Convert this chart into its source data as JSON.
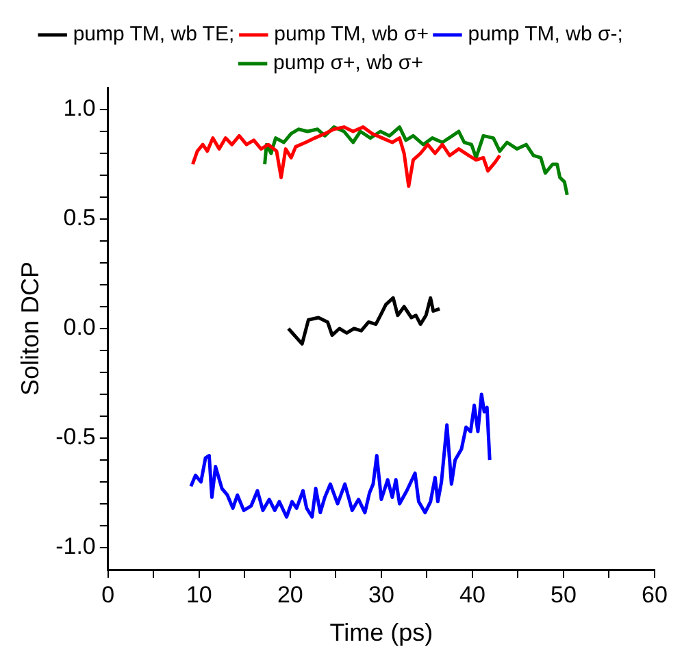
{
  "chart_data": {
    "type": "line",
    "xlabel": "Time (ps)",
    "ylabel": "Soliton DCP",
    "xlim": [
      0,
      60
    ],
    "ylim": [
      -1.1,
      1.1
    ],
    "xticks": [
      0,
      {
        "value": 5,
        "label": null
      },
      10,
      {
        "value": 15,
        "label": null
      },
      20,
      {
        "value": 25,
        "label": null
      },
      30,
      {
        "value": 35,
        "label": null
      },
      40,
      {
        "value": 45,
        "label": null
      },
      50,
      {
        "value": 55,
        "label": null
      },
      60
    ],
    "yticks": [
      {
        "value": -1,
        "label": "-1.0"
      },
      {
        "value": -0.9,
        "label": null
      },
      {
        "value": -0.8,
        "label": null
      },
      {
        "value": -0.7,
        "label": null
      },
      {
        "value": -0.6,
        "label": null
      },
      {
        "value": -0.5,
        "label": "-0.5"
      },
      {
        "value": -0.4,
        "label": null
      },
      {
        "value": -0.3,
        "label": null
      },
      {
        "value": -0.2,
        "label": null
      },
      {
        "value": -0.1,
        "label": null
      },
      {
        "value": 0,
        "label": "0.0"
      },
      {
        "value": 0.1,
        "label": null
      },
      {
        "value": 0.2,
        "label": null
      },
      {
        "value": 0.3,
        "label": null
      },
      {
        "value": 0.4,
        "label": null
      },
      {
        "value": 0.5,
        "label": "0.5"
      },
      {
        "value": 0.6,
        "label": null
      },
      {
        "value": 0.7,
        "label": null
      },
      {
        "value": 0.8,
        "label": null
      },
      {
        "value": 0.9,
        "label": null
      },
      {
        "value": 1,
        "label": "1.0"
      }
    ],
    "grid": false,
    "legend": "top",
    "marker": "none",
    "line_style": "solid",
    "series": [
      {
        "name": "pump TM, wb TE;",
        "color": "#000000",
        "x": [
          19.8,
          21.3,
          22.0,
          23.1,
          24.1,
          24.6,
          25.4,
          26.2,
          27.0,
          27.8,
          28.6,
          29.4,
          29.9,
          30.5,
          31.3,
          31.8,
          32.5,
          33.3,
          33.8,
          34.3,
          34.9,
          35.4,
          35.7,
          36.4
        ],
        "values": [
          0.0,
          -0.07,
          0.04,
          0.05,
          0.03,
          -0.03,
          0.0,
          -0.02,
          0.0,
          -0.01,
          0.03,
          0.02,
          0.06,
          0.11,
          0.14,
          0.06,
          0.1,
          0.05,
          0.06,
          0.02,
          0.06,
          0.14,
          0.08,
          0.09
        ]
      },
      {
        "name": "pump TM, wb σ+",
        "color": "#ff0000",
        "x": [
          9.3,
          9.8,
          10.4,
          10.9,
          11.5,
          12.2,
          12.9,
          13.6,
          14.4,
          15.2,
          16.0,
          16.8,
          17.6,
          18.5,
          19.0,
          19.5,
          20.1,
          20.6,
          21.7,
          22.7,
          23.8,
          24.8,
          25.9,
          26.9,
          28.0,
          29.0,
          30.1,
          31.2,
          32.0,
          32.5,
          33.0,
          33.5,
          34.3,
          35.1,
          35.9,
          36.7,
          37.5,
          38.5,
          39.6,
          40.4,
          41.2,
          41.7,
          42.5,
          43.0
        ],
        "values": [
          0.75,
          0.81,
          0.84,
          0.81,
          0.87,
          0.82,
          0.87,
          0.84,
          0.88,
          0.84,
          0.86,
          0.82,
          0.84,
          0.81,
          0.69,
          0.82,
          0.78,
          0.83,
          0.85,
          0.87,
          0.89,
          0.91,
          0.92,
          0.9,
          0.92,
          0.89,
          0.87,
          0.85,
          0.87,
          0.8,
          0.65,
          0.77,
          0.8,
          0.84,
          0.8,
          0.84,
          0.79,
          0.82,
          0.79,
          0.77,
          0.78,
          0.72,
          0.76,
          0.79
        ]
      },
      {
        "name": "pump TM, wb σ-;",
        "color": "#0000ff",
        "x": [
          9.1,
          9.6,
          10.2,
          10.7,
          11.1,
          11.4,
          11.8,
          12.5,
          13.1,
          13.7,
          14.2,
          14.9,
          15.7,
          16.4,
          17.0,
          17.7,
          18.3,
          18.8,
          19.6,
          20.2,
          20.7,
          21.4,
          21.8,
          22.4,
          22.8,
          23.3,
          23.8,
          24.4,
          25.2,
          26.0,
          26.8,
          27.5,
          28.2,
          28.7,
          29.1,
          29.5,
          30.0,
          30.7,
          31.2,
          31.6,
          32.0,
          32.8,
          33.7,
          34.1,
          34.8,
          35.4,
          35.9,
          36.2,
          36.6,
          37.2,
          37.7,
          38.1,
          38.8,
          39.3,
          39.8,
          40.2,
          40.6,
          41.0,
          41.3,
          41.6,
          41.9
        ],
        "values": [
          -0.72,
          -0.67,
          -0.7,
          -0.59,
          -0.58,
          -0.77,
          -0.63,
          -0.73,
          -0.76,
          -0.82,
          -0.76,
          -0.83,
          -0.81,
          -0.74,
          -0.83,
          -0.78,
          -0.83,
          -0.79,
          -0.86,
          -0.79,
          -0.82,
          -0.74,
          -0.82,
          -0.86,
          -0.73,
          -0.84,
          -0.77,
          -0.71,
          -0.8,
          -0.71,
          -0.83,
          -0.78,
          -0.84,
          -0.75,
          -0.71,
          -0.58,
          -0.78,
          -0.69,
          -0.77,
          -0.69,
          -0.8,
          -0.74,
          -0.66,
          -0.79,
          -0.84,
          -0.79,
          -0.68,
          -0.79,
          -0.7,
          -0.44,
          -0.71,
          -0.6,
          -0.55,
          -0.45,
          -0.47,
          -0.35,
          -0.47,
          -0.3,
          -0.38,
          -0.36,
          -0.6
        ]
      },
      {
        "name": "pump σ+, wb σ+",
        "color": "#008000",
        "x": [
          17.2,
          17.4,
          17.9,
          18.4,
          19.3,
          20.1,
          20.9,
          21.9,
          23.0,
          23.8,
          24.8,
          25.9,
          26.9,
          27.7,
          28.8,
          29.9,
          30.9,
          32.0,
          32.7,
          33.5,
          34.6,
          35.6,
          36.7,
          37.8,
          38.5,
          39.1,
          39.9,
          40.4,
          41.2,
          42.3,
          43.0,
          43.8,
          44.9,
          45.9,
          46.7,
          47.5,
          48.0,
          48.8,
          49.3,
          49.6,
          50.1,
          50.4
        ],
        "values": [
          0.75,
          0.84,
          0.8,
          0.87,
          0.85,
          0.89,
          0.91,
          0.9,
          0.91,
          0.88,
          0.92,
          0.9,
          0.85,
          0.9,
          0.87,
          0.9,
          0.88,
          0.92,
          0.86,
          0.88,
          0.84,
          0.87,
          0.85,
          0.88,
          0.9,
          0.85,
          0.84,
          0.78,
          0.88,
          0.87,
          0.81,
          0.85,
          0.82,
          0.84,
          0.79,
          0.78,
          0.71,
          0.75,
          0.75,
          0.69,
          0.67,
          0.61
        ]
      }
    ]
  }
}
